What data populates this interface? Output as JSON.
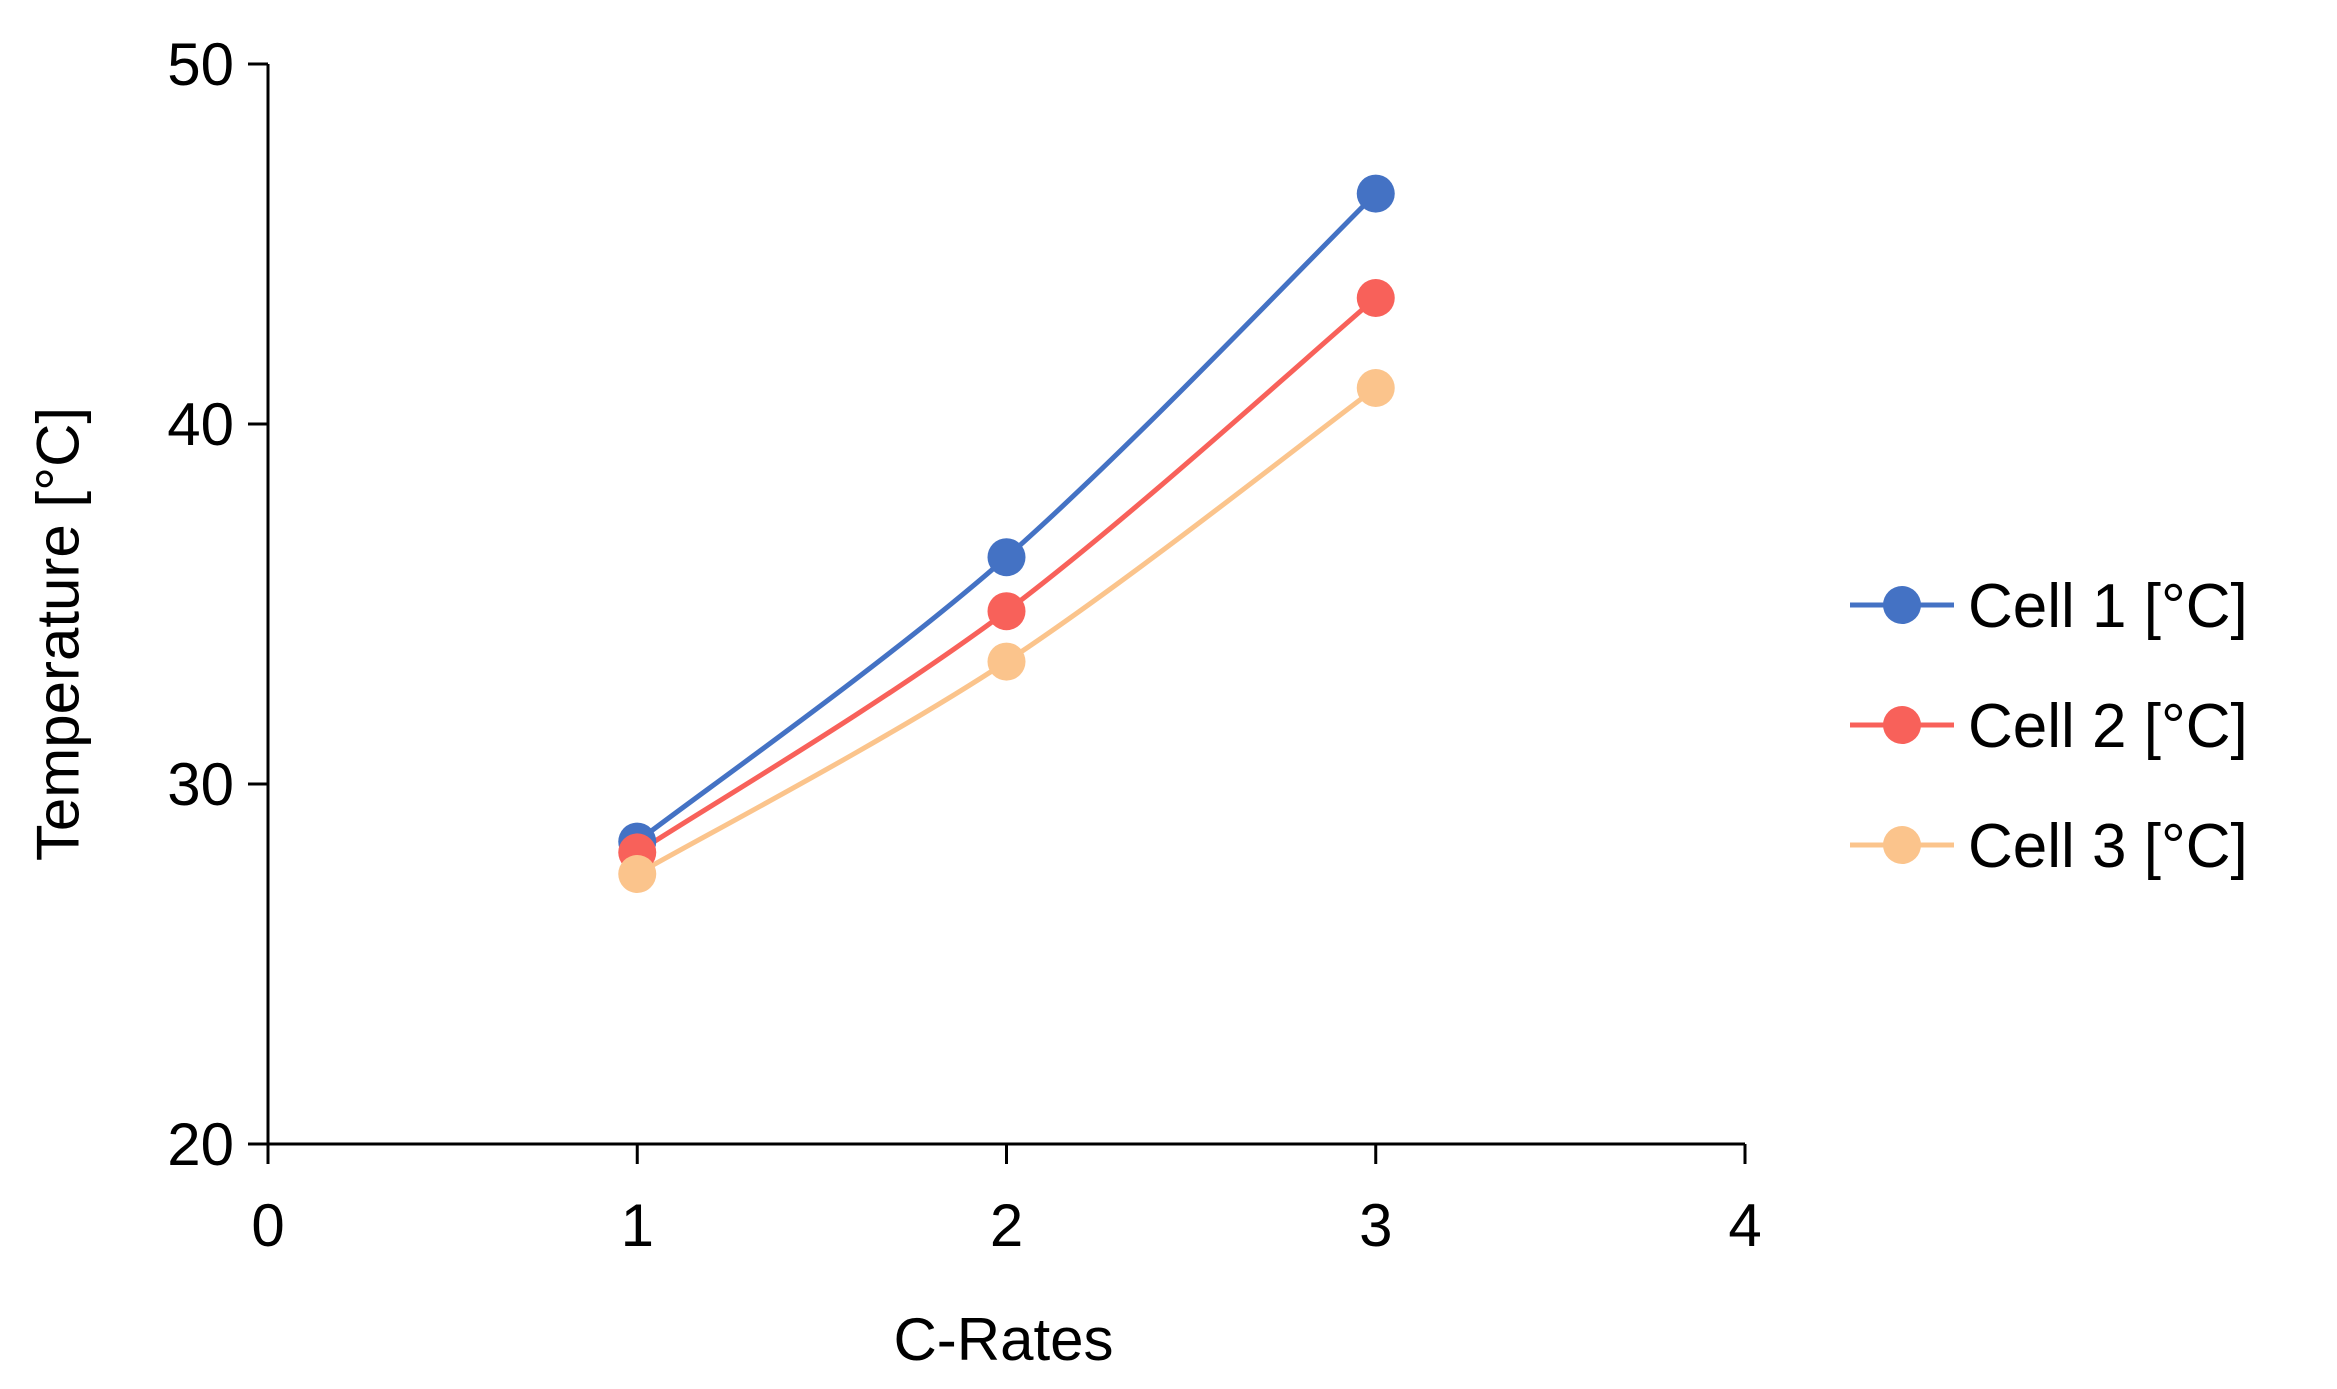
{
  "chart_data": {
    "type": "line",
    "title": "",
    "xlabel": "C-Rates",
    "ylabel": "Temperature [°C]",
    "xlim": [
      0,
      4
    ],
    "ylim": [
      20,
      50
    ],
    "xticks": [
      "0",
      "1",
      "2",
      "3",
      "4"
    ],
    "yticks": [
      "20",
      "30",
      "40",
      "50"
    ],
    "x": [
      1,
      2,
      3
    ],
    "grid": false,
    "legend_position": "right",
    "series": [
      {
        "name": "Cell 1 [°C]",
        "color": "#4472C4",
        "values": [
          28.4,
          36.3,
          46.4
        ]
      },
      {
        "name": "Cell 2 [°C]",
        "color": "#F8615A",
        "values": [
          28.1,
          34.8,
          43.5
        ]
      },
      {
        "name": "Cell 3 [°C]",
        "color": "#FBC48C",
        "values": [
          27.5,
          33.4,
          41.0
        ]
      }
    ]
  }
}
